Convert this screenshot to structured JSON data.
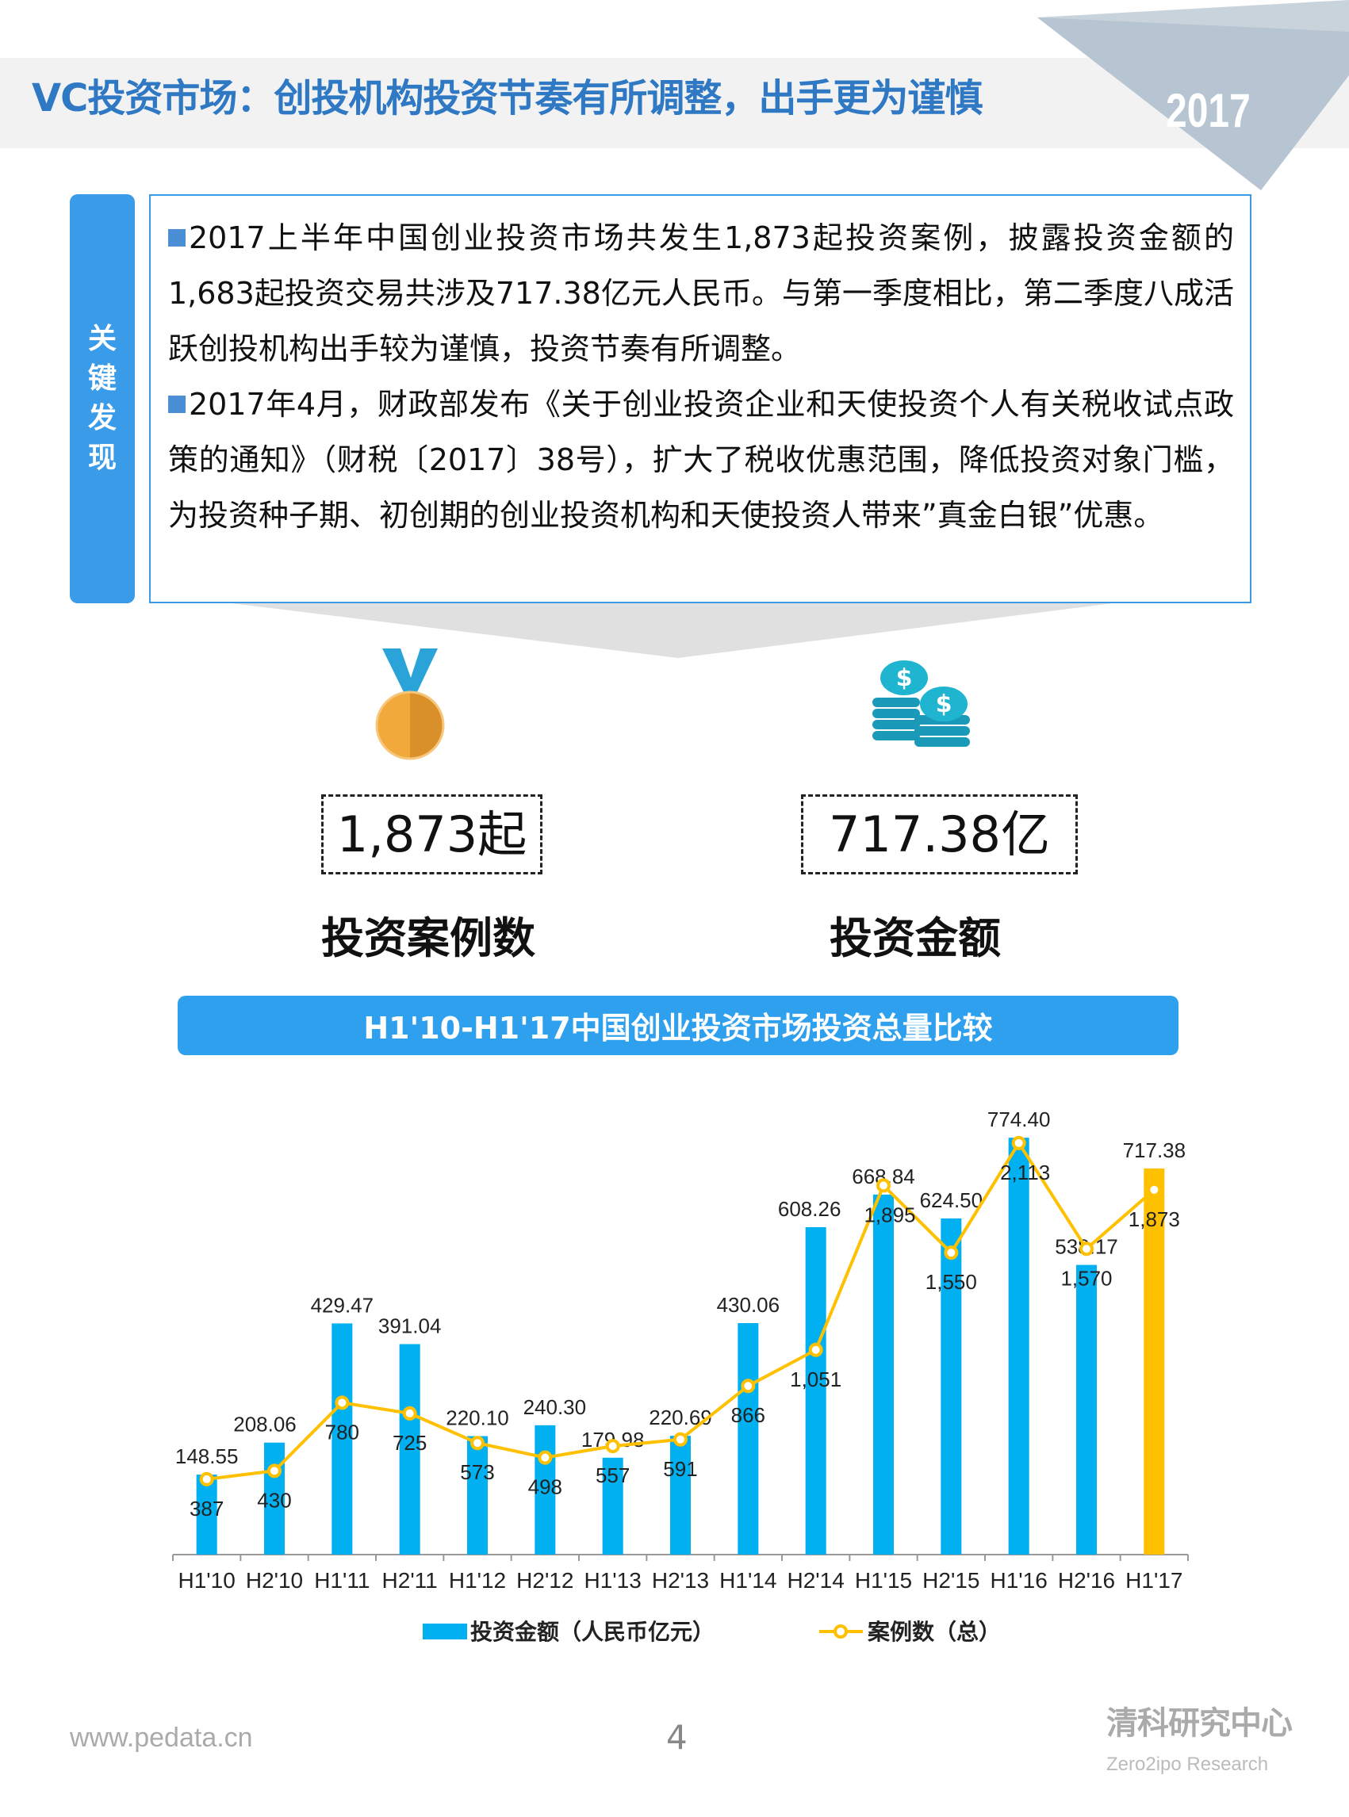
{
  "header": {
    "title": "VC投资市场：创投机构投资节奏有所调整，出手更为谨慎",
    "year": "2017"
  },
  "key_findings": {
    "label": "关键发现",
    "paragraphs": [
      "2017上半年中国创业投资市场共发生1,873起投资案例，披露投资金额的1,683起投资交易共涉及717.38亿元人民币。与第一季度相比，第二季度八成活跃创投机构出手较为谨慎，投资节奏有所调整。",
      "2017年4月，财政部发布《关于创业投资企业和天使投资个人有关税收试点政策的通知》（财税〔2017〕38号），扩大了税收优惠范围，降低投资对象门槛，为投资种子期、初创期的创业投资机构和天使投资人带来”真金白银”优惠。"
    ]
  },
  "stats": [
    {
      "icon": "medal-icon",
      "value": "1,873起",
      "label": "投资案例数"
    },
    {
      "icon": "coins-icon",
      "value": "717.38亿",
      "label": "投资金额"
    }
  ],
  "chart_data": {
    "type": "bar+line",
    "title": "H1'10-H1'17中国创业投资市场投资总量比较",
    "categories": [
      "H1'10",
      "H2'10",
      "H1'11",
      "H2'11",
      "H1'12",
      "H2'12",
      "H1'13",
      "H2'13",
      "H1'14",
      "H2'14",
      "H1'15",
      "H2'15",
      "H1'16",
      "H2'16",
      "H1'17"
    ],
    "series": [
      {
        "name": "投资金额（人民币亿元）",
        "type": "bar",
        "color": "#00b0f0",
        "highlight_color": "#ffc000",
        "values": [
          148.55,
          208.06,
          429.47,
          391.04,
          220.1,
          240.3,
          179.98,
          220.69,
          430.06,
          608.26,
          668.84,
          624.5,
          774.4,
          538.17,
          717.38
        ],
        "labels": [
          "148.55",
          "208.06",
          "429.47",
          "391.04",
          "220.10",
          "240.30",
          "179.98",
          "220.69",
          "430.06",
          "608.26",
          "668.84",
          "624.50",
          "774.40",
          "538.17",
          "717.38"
        ]
      },
      {
        "name": "案例数（总）",
        "type": "line",
        "color": "#ffc000",
        "values": [
          387,
          430,
          780,
          725,
          573,
          498,
          557,
          591,
          866,
          1051,
          1895,
          1550,
          2113,
          1570,
          1873
        ],
        "labels": [
          "387",
          "430",
          "780",
          "725",
          "573",
          "498",
          "557",
          "591",
          "866",
          "1,051",
          "1,895",
          "1,550",
          "2,113",
          "1,570",
          "1,873"
        ]
      }
    ],
    "legend": "bottom",
    "grid": false
  },
  "footer": {
    "url": "www.pedata.cn",
    "page": "4",
    "logo_cn": "清科研究中心",
    "logo_en": "Zero2ipo Research"
  }
}
